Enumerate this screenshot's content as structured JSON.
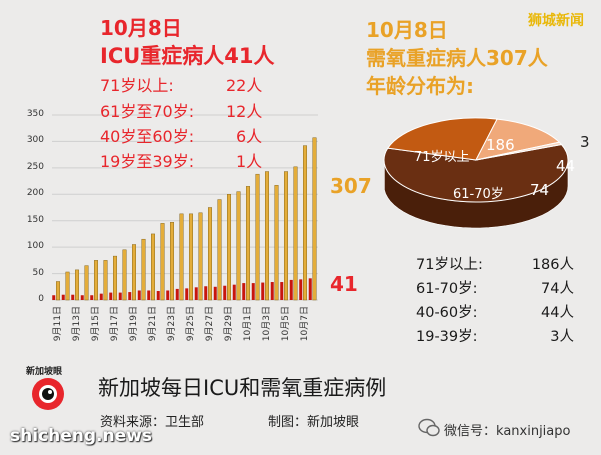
{
  "colors": {
    "accent_red": "#e8262c",
    "accent_gold": "#e9a227",
    "icu_bar": "#c8150e",
    "oxygen_bar": "#e4ad3a"
  },
  "watermark": "狮城新闻",
  "icu_block": {
    "date": "10月8日",
    "title": "ICU重症病人41人",
    "rows": [
      {
        "label": "71岁以上:",
        "value": "22人"
      },
      {
        "label": "61岁至70岁:",
        "value": "12人"
      },
      {
        "label": "40岁至60岁:",
        "value": "6人"
      },
      {
        "label": "19岁至39岁:",
        "value": "1人"
      }
    ]
  },
  "oxygen_block": {
    "date": "10月8日",
    "title": "需氧重症病人307人",
    "subtitle": "年龄分布为:",
    "rows": [
      {
        "label": "71岁以上:",
        "value": "186人"
      },
      {
        "label": "61-70岁:",
        "value": "74人"
      },
      {
        "label": "40-60岁:",
        "value": "44人"
      },
      {
        "label": "19-39岁:",
        "value": "3人"
      }
    ]
  },
  "callouts": {
    "oxygen_total": "307",
    "icu_total": "41"
  },
  "footer": {
    "title": "新加坡每日ICU和需氧重症病例",
    "source": "资料来源：卫生部",
    "made_by": "制图：新加坡眼",
    "logo_text": "新加坡眼",
    "site": "shicheng.news",
    "wechat_label": "微信号：",
    "wechat_id": "kanxinjiapo"
  },
  "chart_data": [
    {
      "type": "bar",
      "title": "新加坡每日ICU和需氧重症病例",
      "x": [
        "9月11日",
        "9月12日",
        "9月13日",
        "9月14日",
        "9月15日",
        "9月16日",
        "9月17日",
        "9月18日",
        "9月19日",
        "9月20日",
        "9月21日",
        "9月22日",
        "9月23日",
        "9月24日",
        "9月25日",
        "9月26日",
        "9月27日",
        "9月28日",
        "9月29日",
        "9月30日",
        "10月1日",
        "10月2日",
        "10月3日",
        "10月4日",
        "10月5日",
        "10月6日",
        "10月7日",
        "10月8日"
      ],
      "x_tick_labels": [
        "9月11日",
        "9月13日",
        "9月15日",
        "9月17日",
        "9月19日",
        "9月21日",
        "9月23日",
        "9月25日",
        "9月27日",
        "9月29日",
        "10月1日",
        "10月3日",
        "10月5日",
        "10月7日"
      ],
      "y_ticks": [
        0,
        50,
        100,
        150,
        200,
        250,
        300,
        350
      ],
      "ylim": [
        0,
        350
      ],
      "series": [
        {
          "values": [
            9,
            10,
            10,
            9,
            9,
            12,
            14,
            14,
            15,
            18,
            18,
            17,
            18,
            21,
            22,
            24,
            26,
            25,
            27,
            29,
            32,
            32,
            33,
            34,
            34,
            38,
            39,
            41
          ]
        },
        {
          "values": [
            35,
            53,
            57,
            65,
            75,
            75,
            83,
            95,
            105,
            115,
            125,
            145,
            147,
            163,
            163,
            165,
            175,
            190,
            200,
            205,
            215,
            238,
            243,
            217,
            243,
            252,
            292,
            307
          ]
        }
      ]
    },
    {
      "type": "pie",
      "labels": [
        "71岁以上",
        "61-70岁",
        "40-60岁",
        "19-39岁"
      ],
      "values": [
        186,
        74,
        44,
        3
      ],
      "slice_labels": {
        "a": "71岁以上",
        "b": "186",
        "c": "61-70岁",
        "d": "74",
        "e": "44",
        "f": "3"
      }
    }
  ]
}
